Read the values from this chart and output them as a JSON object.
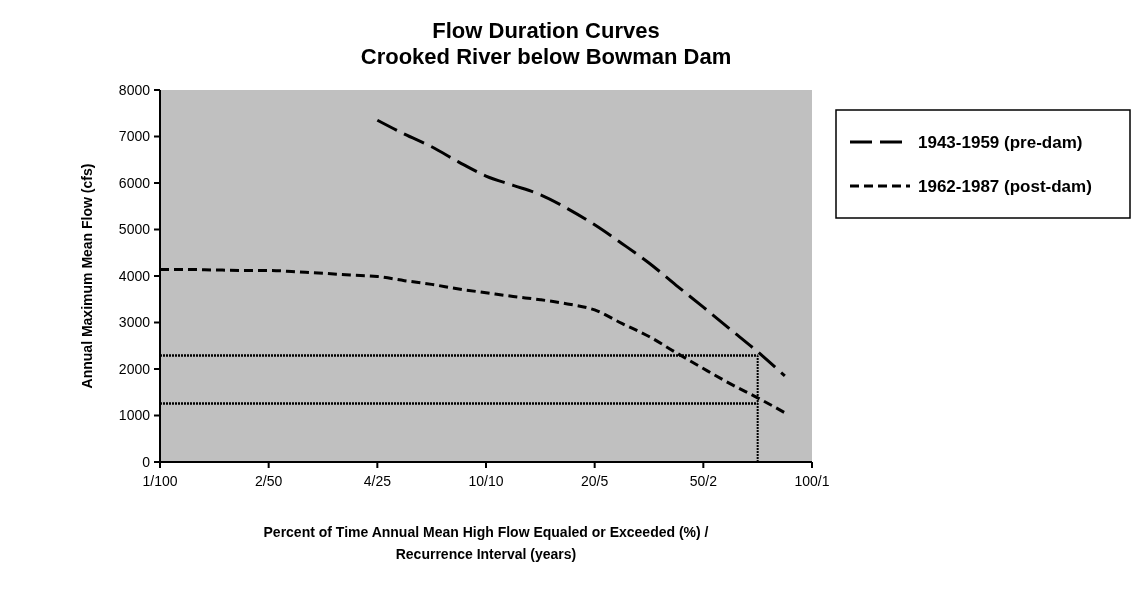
{
  "chart_data": {
    "type": "line",
    "title": "Flow Duration Curves\nCrooked River below Bowman Dam",
    "xlabel": "Percent of Time Annual Mean High Flow Equaled or Exceeded (%) /\nRecurrence Interval (years)",
    "ylabel": "Annual Maximum Mean Flow (cfs)",
    "categories": [
      "1/100",
      null,
      null,
      null,
      "2/50",
      null,
      null,
      null,
      "4/25",
      null,
      null,
      null,
      "10/10",
      null,
      null,
      null,
      "20/5",
      null,
      null,
      null,
      "50/2",
      null,
      null,
      null,
      "100/1"
    ],
    "ylim": [
      0,
      8000
    ],
    "yticks": [
      0,
      1000,
      2000,
      3000,
      4000,
      5000,
      6000,
      7000,
      8000
    ],
    "grid": false,
    "legend": "right",
    "series": [
      {
        "name": "1943-1959 (pre-dam)",
        "color": "#000000",
        "line_style": "dashed",
        "values": [
          null,
          null,
          null,
          null,
          null,
          null,
          null,
          null,
          7350,
          7050,
          6780,
          6450,
          6150,
          5950,
          5750,
          5450,
          5100,
          4700,
          4280,
          3800,
          3330,
          2850,
          2370,
          1850,
          null
        ]
      },
      {
        "name": "1962-1987 (post-dam)",
        "color": "#000000",
        "line_style": "dotted",
        "values": [
          4140,
          4140,
          4130,
          4120,
          4120,
          4090,
          4060,
          4020,
          3990,
          3900,
          3820,
          3720,
          3640,
          3560,
          3490,
          3400,
          3270,
          2980,
          2700,
          2350,
          2010,
          1680,
          1380,
          1060,
          null
        ]
      }
    ],
    "ref_lines": [
      {
        "axis": "y",
        "value": 2290,
        "color": "#000000",
        "line_style": "dotted"
      },
      {
        "axis": "y",
        "value": 1260,
        "color": "#000000",
        "line_style": "dotted"
      }
    ]
  }
}
